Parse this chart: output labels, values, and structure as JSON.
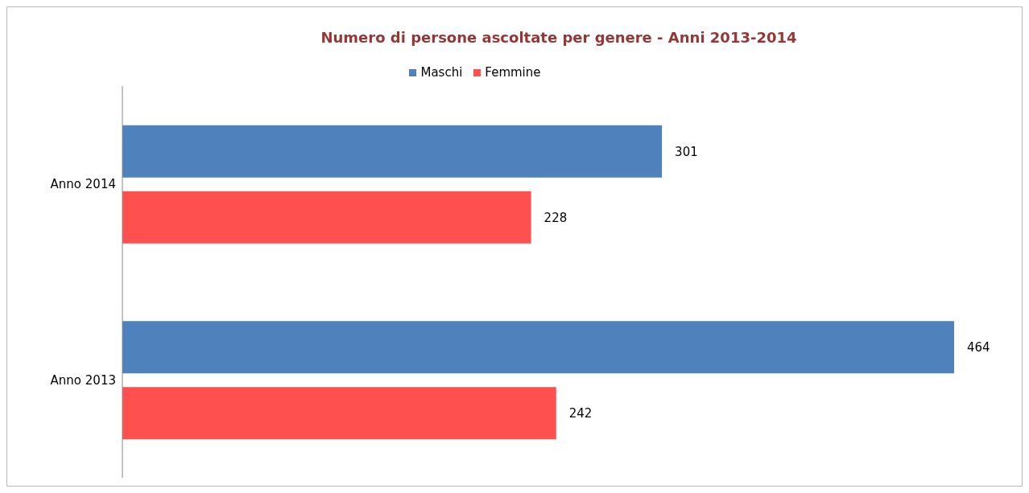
{
  "chart_data": {
    "type": "bar",
    "orientation": "horizontal",
    "title": "Numero di persone ascoltate per genere - Anni 2013-2014",
    "categories": [
      "Anno 2014",
      "Anno 2013"
    ],
    "series": [
      {
        "name": "Maschi",
        "color": "#4f81bd",
        "values": [
          301,
          464
        ]
      },
      {
        "name": "Femmine",
        "color": "#ff5050",
        "values": [
          228,
          242
        ]
      }
    ],
    "data_labels": true,
    "legend": "top"
  }
}
